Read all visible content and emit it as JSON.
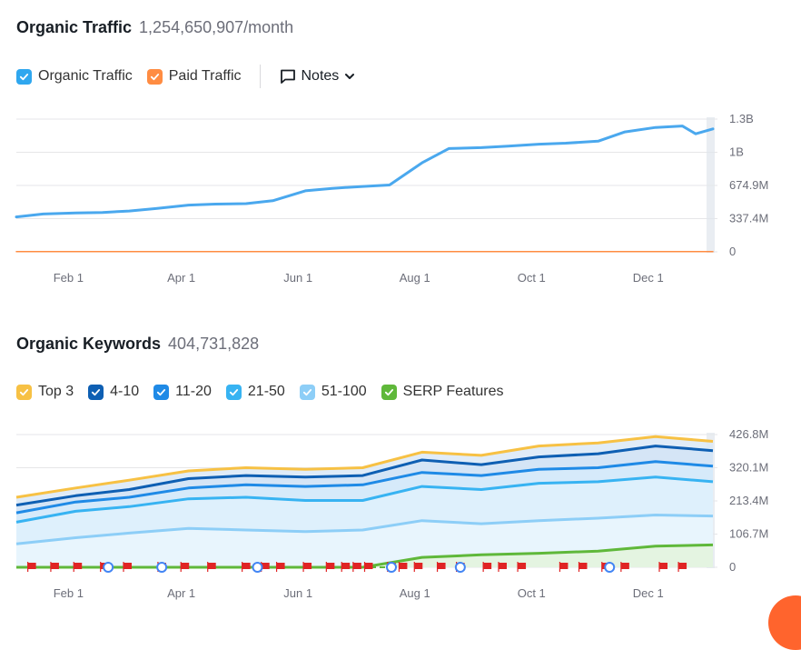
{
  "organic_traffic": {
    "title": "Organic Traffic",
    "value": "1,254,650,907/month",
    "legend": [
      {
        "label": "Organic Traffic",
        "color": "#2fa7ef",
        "checked": true
      },
      {
        "label": "Paid Traffic",
        "color": "#ff8c42",
        "checked": true
      }
    ],
    "notes_label": "Notes"
  },
  "organic_keywords": {
    "title": "Organic Keywords",
    "value": "404,731,828",
    "legend": [
      {
        "label": "Top 3",
        "color": "#f7c144",
        "checked": true
      },
      {
        "label": "4-10",
        "color": "#0e5fb3",
        "checked": true
      },
      {
        "label": "11-20",
        "color": "#1f8ae6",
        "checked": true
      },
      {
        "label": "21-50",
        "color": "#37b3f2",
        "checked": true
      },
      {
        "label": "51-100",
        "color": "#8dcef7",
        "checked": true
      },
      {
        "label": "SERP Features",
        "color": "#5fb83a",
        "checked": true
      }
    ]
  },
  "chart_data": [
    {
      "type": "line",
      "x_ticks": [
        "Feb 1",
        "Apr 1",
        "Jun 1",
        "Aug 1",
        "Oct 1",
        "Dec 1"
      ],
      "y_ticks": [
        "0",
        "337.4M",
        "674.9M",
        "1B",
        "1.3B"
      ],
      "ylim": [
        0,
        1350
      ],
      "grid": true,
      "series": [
        {
          "name": "Organic Traffic",
          "color": "#4aa8ee",
          "x": [
            "Jan 1",
            "Jan 15",
            "Feb 1",
            "Feb 15",
            "Mar 1",
            "Mar 15",
            "Apr 1",
            "Apr 15",
            "May 1",
            "May 15",
            "Jun 1",
            "Jun 15",
            "Jul 1",
            "Jul 15",
            "Aug 1",
            "Aug 15",
            "Sep 1",
            "Sep 15",
            "Oct 1",
            "Oct 15",
            "Nov 1",
            "Nov 15",
            "Dec 1",
            "Dec 15",
            "Dec 22",
            "Dec 31"
          ],
          "values": [
            355,
            385,
            395,
            400,
            415,
            440,
            475,
            485,
            490,
            520,
            620,
            645,
            665,
            680,
            905,
            1050,
            1060,
            1075,
            1095,
            1105,
            1125,
            1220,
            1265,
            1280,
            1200,
            1250
          ]
        },
        {
          "name": "Paid Traffic",
          "color": "#ff8c42",
          "x": [
            "Jan 1",
            "Dec 31"
          ],
          "values": [
            2,
            2
          ]
        }
      ]
    },
    {
      "type": "area",
      "x_ticks": [
        "Feb 1",
        "Apr 1",
        "Jun 1",
        "Aug 1",
        "Oct 1",
        "Dec 1"
      ],
      "y_ticks": [
        "0",
        "106.7M",
        "213.4M",
        "320.1M",
        "426.8M"
      ],
      "ylim": [
        0,
        426.8
      ],
      "grid": true,
      "x": [
        "Jan 1",
        "Feb 1",
        "Mar 1",
        "Apr 1",
        "May 1",
        "Jun 1",
        "Jul 1",
        "Aug 1",
        "Sep 1",
        "Oct 1",
        "Nov 1",
        "Dec 1",
        "Dec 31"
      ],
      "series": [
        {
          "name": "Top 3",
          "color": "#f7c144",
          "values": [
            225,
            255,
            280,
            310,
            320,
            315,
            320,
            370,
            360,
            390,
            400,
            420,
            405
          ]
        },
        {
          "name": "4-10",
          "color": "#0e5fb3",
          "values": [
            200,
            230,
            250,
            285,
            295,
            290,
            295,
            345,
            330,
            355,
            365,
            390,
            375
          ]
        },
        {
          "name": "11-20",
          "color": "#1f8ae6",
          "values": [
            175,
            210,
            225,
            255,
            265,
            260,
            265,
            305,
            295,
            315,
            320,
            340,
            325
          ]
        },
        {
          "name": "21-50",
          "color": "#37b3f2",
          "values": [
            145,
            180,
            195,
            220,
            225,
            215,
            215,
            260,
            250,
            270,
            275,
            290,
            275
          ]
        },
        {
          "name": "51-100",
          "color": "#8dcef7",
          "values": [
            75,
            95,
            110,
            125,
            120,
            115,
            120,
            150,
            140,
            150,
            158,
            168,
            165
          ]
        },
        {
          "name": "SERP Features",
          "color": "#5fb83a",
          "values": [
            0,
            0,
            0,
            0,
            0,
            0,
            0,
            32,
            40,
            45,
            52,
            68,
            72
          ]
        }
      ]
    }
  ],
  "colors": {
    "grid": "#e6e6e8",
    "event_flag": "#e02424",
    "google_event": "#4285f4"
  }
}
